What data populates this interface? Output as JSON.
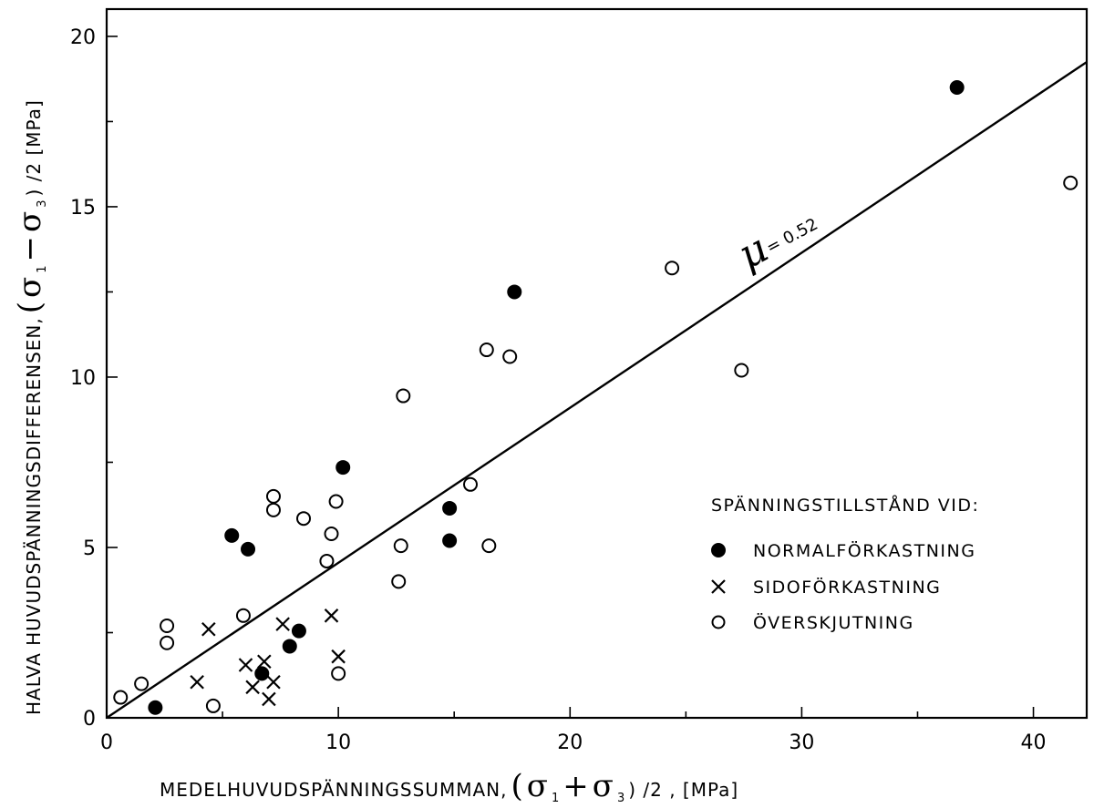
{
  "chart_data": {
    "type": "scatter",
    "xlabel_prefix": "MEDELHUVUDSPÄNNINGSSUMMAN,",
    "xlabel_paren_open": "(",
    "xlabel_sigma1": "σ",
    "xlabel_sub1": "1",
    "xlabel_op": "+",
    "xlabel_sigma3": "σ",
    "xlabel_sub3": "3",
    "xlabel_suffix": ") /2 , [MPa]",
    "ylabel_prefix": "HALVA  HUVUDSPÄNNINGSDIFFERENSEN,",
    "ylabel_paren_open": "(",
    "ylabel_sigma1": "σ",
    "ylabel_sub1": "1",
    "ylabel_op": "−",
    "ylabel_sigma3": "σ",
    "ylabel_sub3": "3",
    "ylabel_suffix": ") /2 [MPa]",
    "xlim": [
      0,
      42.3
    ],
    "ylim": [
      0,
      20.8
    ],
    "x_ticks": [
      0,
      10,
      20,
      30,
      40
    ],
    "y_ticks": [
      0,
      5,
      10,
      15,
      20
    ],
    "x_tick_labels": [
      "0",
      "10",
      "20",
      "30",
      "40"
    ],
    "y_tick_labels": [
      "0",
      "5",
      "10",
      "15",
      "20"
    ],
    "grid": false,
    "legend_position": "right",
    "legend_title": "SPÄNNINGSTILLSTÅND  VID:",
    "fit_line": {
      "mu_symbol": "μ",
      "label": "= 0.52",
      "slope": 0.455,
      "intercept": 0.0,
      "x_range": [
        0,
        42.3
      ]
    },
    "series": [
      {
        "name": "NORMALFÖRKASTNING",
        "marker": "filled-circle",
        "points": [
          [
            2.1,
            0.3
          ],
          [
            5.4,
            5.35
          ],
          [
            6.1,
            4.95
          ],
          [
            6.7,
            1.3
          ],
          [
            7.9,
            2.1
          ],
          [
            8.3,
            2.55
          ],
          [
            10.2,
            7.35
          ],
          [
            14.8,
            6.15
          ],
          [
            14.8,
            5.2
          ],
          [
            17.6,
            12.5
          ],
          [
            36.7,
            18.5
          ]
        ]
      },
      {
        "name": "SIDOFÖRKASTNING",
        "marker": "cross",
        "points": [
          [
            3.9,
            1.05
          ],
          [
            4.4,
            2.6
          ],
          [
            6.0,
            1.55
          ],
          [
            6.3,
            0.9
          ],
          [
            6.8,
            1.65
          ],
          [
            7.0,
            0.55
          ],
          [
            7.2,
            1.05
          ],
          [
            7.6,
            2.75
          ],
          [
            9.7,
            3.0
          ],
          [
            10.0,
            1.8
          ]
        ]
      },
      {
        "name": "ÖVERSKJUTNING",
        "marker": "open-circle",
        "points": [
          [
            0.6,
            0.6
          ],
          [
            1.5,
            1.0
          ],
          [
            2.6,
            2.7
          ],
          [
            2.6,
            2.2
          ],
          [
            4.6,
            0.35
          ],
          [
            5.9,
            3.0
          ],
          [
            7.2,
            6.5
          ],
          [
            7.2,
            6.1
          ],
          [
            8.5,
            5.85
          ],
          [
            9.5,
            4.6
          ],
          [
            9.7,
            5.4
          ],
          [
            9.9,
            6.35
          ],
          [
            10.0,
            1.3
          ],
          [
            12.6,
            4.0
          ],
          [
            12.7,
            5.05
          ],
          [
            12.8,
            9.45
          ],
          [
            15.7,
            6.85
          ],
          [
            16.4,
            10.8
          ],
          [
            16.5,
            5.05
          ],
          [
            17.4,
            10.6
          ],
          [
            24.4,
            13.2
          ],
          [
            27.4,
            10.2
          ],
          [
            41.6,
            15.7
          ]
        ]
      }
    ]
  }
}
